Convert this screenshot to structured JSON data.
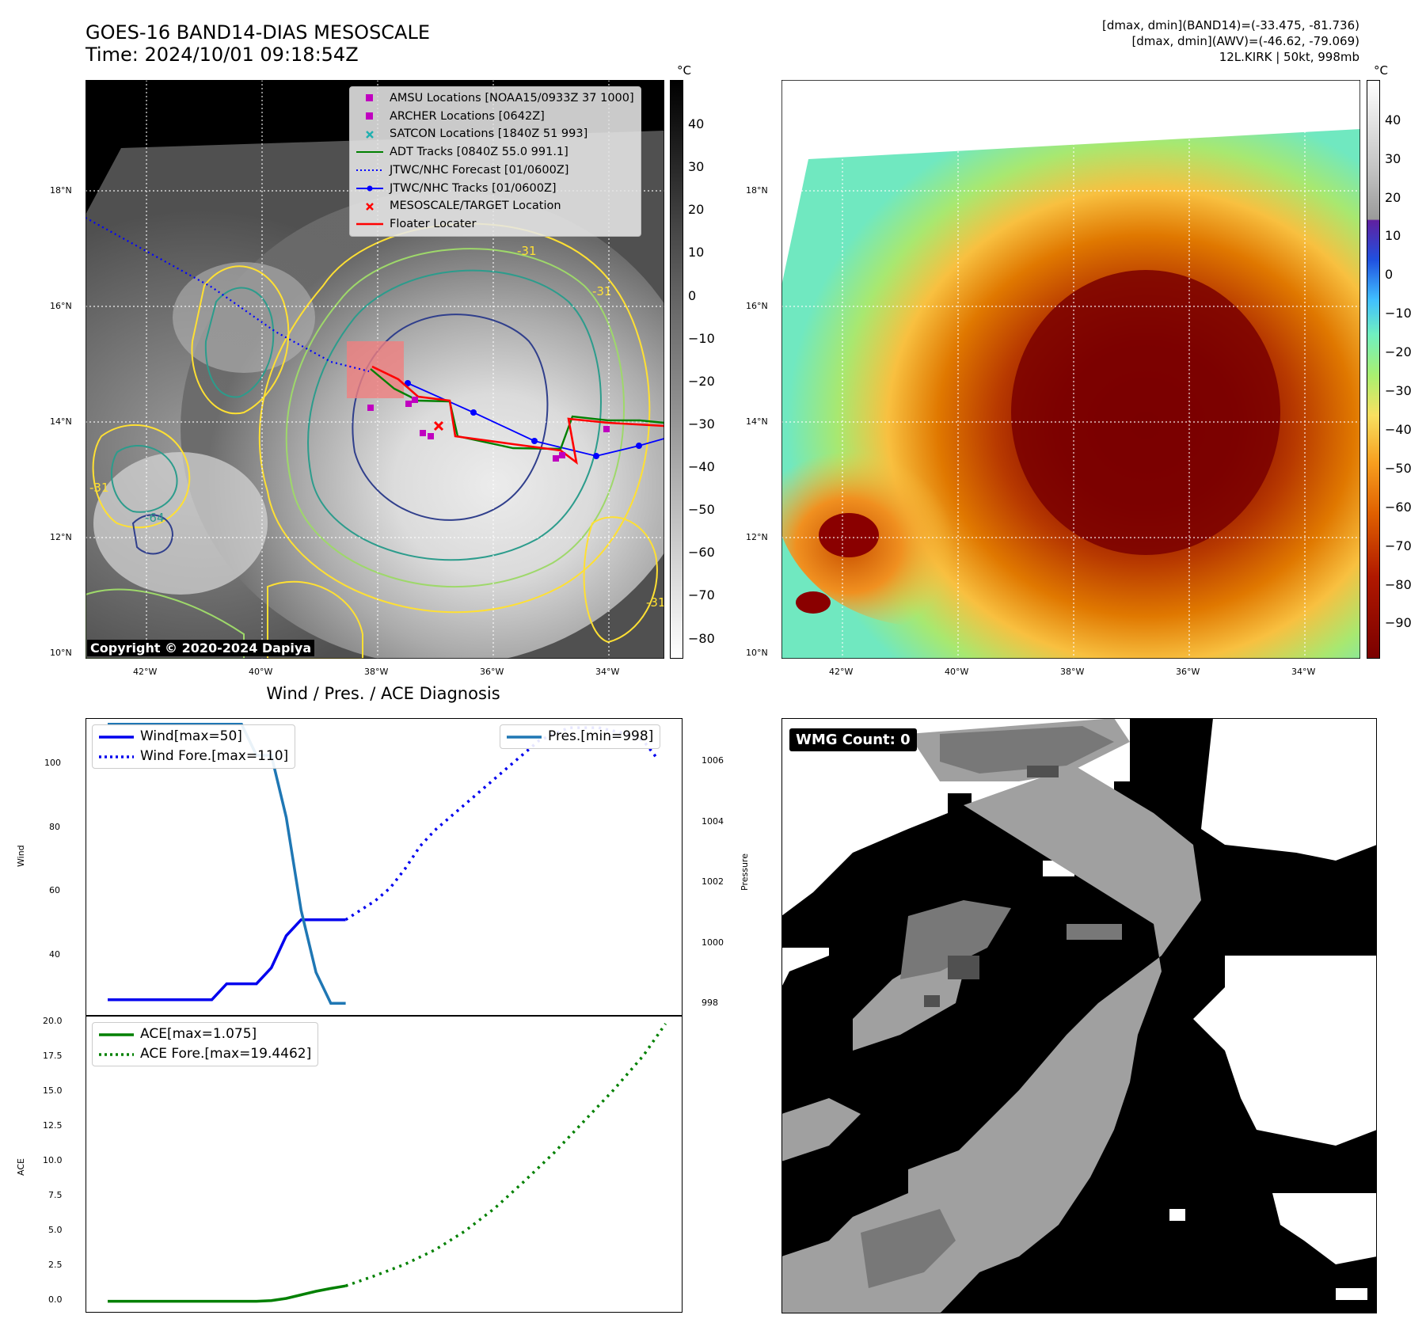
{
  "header": {
    "title_line1": "GOES-16 BAND14-DIAS MESOSCALE",
    "title_line2": "Time: 2024/10/01 09:18:54Z",
    "info_line1": "[dmax, dmin](BAND14)=(-33.475, -81.736)",
    "info_line2": "[dmax, dmin](AWV)=(-46.62, -79.069)",
    "info_line3": "12L.KIRK | 50kt, 998mb"
  },
  "map": {
    "lat_ticks": [
      "18°N",
      "16°N",
      "14°N",
      "12°N",
      "10°N"
    ],
    "lon_ticks": [
      "42°W",
      "40°W",
      "38°W",
      "36°W",
      "34°W"
    ],
    "copyright": "Copyright © 2020-2024 Dapiya",
    "contour_labels": [
      "-31",
      "-31",
      "-31",
      "-64",
      "-31",
      "-31"
    ],
    "colorbar_unit": "°C",
    "colorbar_ticks_ir": [
      "40",
      "30",
      "20",
      "10",
      "0",
      "−10",
      "−20",
      "−30",
      "−40",
      "−50",
      "−60",
      "−70",
      "−80"
    ],
    "colorbar_ticks_awv": [
      "40",
      "30",
      "20",
      "10",
      "0",
      "−10",
      "−20",
      "−30",
      "−40",
      "−50",
      "−60",
      "−70",
      "−80",
      "−90"
    ],
    "legend": [
      {
        "label": "AMSU Locations [NOAA15/0933Z 37 1000]",
        "symbol": "square",
        "color": "#c000c0"
      },
      {
        "label": "ARCHER Locations [0642Z]",
        "symbol": "square",
        "color": "#c000c0"
      },
      {
        "label": "SATCON Locations [1840Z 51 993]",
        "symbol": "x",
        "color": "#20b0b0"
      },
      {
        "label": "ADT Tracks [0840Z 55.0 991.1]",
        "symbol": "line",
        "color": "#008000"
      },
      {
        "label": "JTWC/NHC Forecast [01/0600Z]",
        "symbol": "dotted",
        "color": "#0000ff"
      },
      {
        "label": "JTWC/NHC Tracks [01/0600Z]",
        "symbol": "line-dot",
        "color": "#0000ff"
      },
      {
        "label": "MESOSCALE/TARGET Location",
        "symbol": "x",
        "color": "#ff0000"
      },
      {
        "label": "Floater Locater",
        "symbol": "line",
        "color": "#ff0000"
      }
    ]
  },
  "wind_panel": {
    "title": "Wind / Pres. / ACE Diagnosis",
    "ylabel_wind": "Wind",
    "ylabel_pressure": "Pressure",
    "ylabel_ace": "ACE",
    "wind_ticks": [
      "100",
      "80",
      "60",
      "40"
    ],
    "pressure_ticks": [
      "1006",
      "1004",
      "1002",
      "1000",
      "998"
    ],
    "ace_ticks": [
      "20.0",
      "17.5",
      "15.0",
      "12.5",
      "10.0",
      "7.5",
      "5.0",
      "2.5",
      "0.0"
    ],
    "legend_wind": "Wind[max=50]",
    "legend_wind_fore": "Wind Fore.[max=110]",
    "legend_pres": "Pres.[min=998]",
    "legend_ace": "ACE[max=1.075]",
    "legend_ace_fore": "ACE Fore.[max=19.4462]"
  },
  "wmg": {
    "label": "WMG Count: 0"
  },
  "chart_data": [
    {
      "type": "line",
      "title": "Wind / Pres. / ACE Diagnosis",
      "ylabel": "Wind",
      "ylim": [
        20,
        113
      ],
      "series": [
        {
          "name": "Wind[max=50]",
          "color": "#0000ee",
          "style": "solid",
          "x": [
            0,
            1,
            2,
            3,
            4,
            5,
            6,
            7,
            8,
            9,
            10,
            11,
            12,
            13,
            14,
            15,
            16
          ],
          "values": [
            25,
            25,
            25,
            25,
            25,
            25,
            25,
            25,
            30,
            30,
            30,
            35,
            45,
            50,
            50,
            50,
            50
          ]
        },
        {
          "name": "Wind Fore.[max=110]",
          "color": "#0000ee",
          "style": "dotted",
          "x": [
            16,
            17,
            18,
            19,
            20,
            21,
            22,
            23,
            24,
            25,
            26,
            27,
            28,
            29,
            30,
            31,
            32,
            33,
            34,
            35,
            36,
            37
          ],
          "values": [
            50,
            53,
            56,
            60,
            66,
            73,
            78,
            82,
            86,
            90,
            94,
            98,
            102,
            106,
            108,
            110,
            110,
            110,
            109,
            108,
            106,
            100
          ]
        }
      ]
    },
    {
      "type": "line",
      "ylabel": "Pressure",
      "ylim": [
        997.6,
        1007.2
      ],
      "series": [
        {
          "name": "Pres.[min=998]",
          "color": "#1f77b4",
          "style": "solid",
          "x": [
            0,
            1,
            2,
            3,
            4,
            5,
            6,
            7,
            8,
            9,
            10,
            11,
            12,
            13,
            14,
            15,
            16
          ],
          "values": [
            1007,
            1007,
            1007,
            1007,
            1007,
            1007,
            1007,
            1007,
            1007,
            1007,
            1006,
            1006,
            1004,
            1001,
            999,
            998,
            998
          ]
        }
      ]
    },
    {
      "type": "line",
      "ylabel": "ACE",
      "ylim": [
        -0.8,
        20.0
      ],
      "series": [
        {
          "name": "ACE[max=1.075]",
          "color": "#008000",
          "style": "solid",
          "x": [
            0,
            4,
            8,
            9,
            10,
            11,
            12,
            13,
            14,
            15,
            16
          ],
          "values": [
            0,
            0,
            0,
            0,
            0,
            0.05,
            0.2,
            0.45,
            0.7,
            0.9,
            1.075
          ]
        },
        {
          "name": "ACE Fore.[max=19.4462]",
          "color": "#008000",
          "style": "dotted",
          "x": [
            16,
            18,
            20,
            22,
            24,
            26,
            28,
            30,
            32,
            34,
            36,
            37.5
          ],
          "values": [
            1.075,
            1.8,
            2.6,
            3.6,
            4.9,
            6.5,
            8.4,
            10.4,
            12.6,
            14.8,
            17.2,
            19.4462
          ]
        }
      ]
    }
  ]
}
